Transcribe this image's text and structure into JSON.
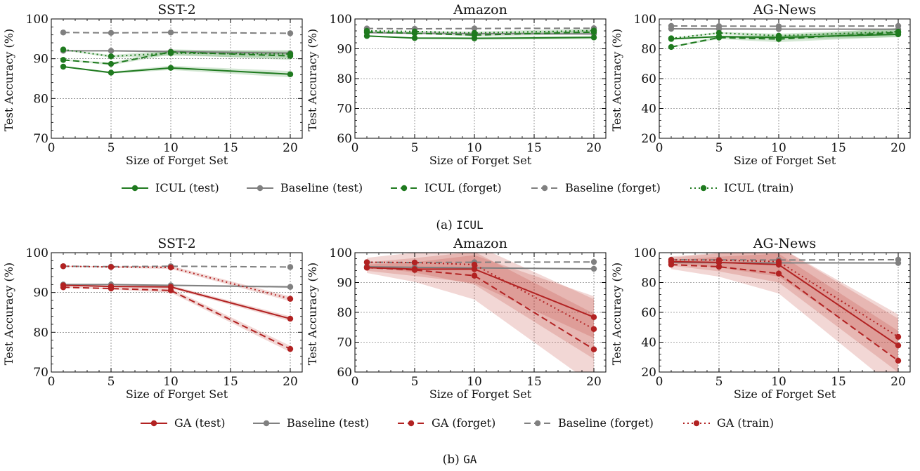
{
  "colors": {
    "icul": "#1f7a1f",
    "ga": "#b22222",
    "baseline": "#808080",
    "icul_band": "#2e8b2e",
    "ga_band": "#c0392b"
  },
  "captions": [
    {
      "label": "(a)",
      "method": "ICUL"
    },
    {
      "label": "(b)",
      "method": "GA"
    }
  ],
  "legends": [
    [
      {
        "label": "ICUL (test)",
        "color_key": "icul",
        "dash": "solid"
      },
      {
        "label": "Baseline (test)",
        "color_key": "baseline",
        "dash": "solid"
      },
      {
        "label": "ICUL (forget)",
        "color_key": "icul",
        "dash": "dashed"
      },
      {
        "label": "Baseline (forget)",
        "color_key": "baseline",
        "dash": "dashed"
      },
      {
        "label": "ICUL (train)",
        "color_key": "icul",
        "dash": "dotted"
      }
    ],
    [
      {
        "label": "GA (test)",
        "color_key": "ga",
        "dash": "solid"
      },
      {
        "label": "Baseline (test)",
        "color_key": "baseline",
        "dash": "solid"
      },
      {
        "label": "GA (forget)",
        "color_key": "ga",
        "dash": "dashed"
      },
      {
        "label": "Baseline (forget)",
        "color_key": "baseline",
        "dash": "dashed"
      },
      {
        "label": "GA (train)",
        "color_key": "ga",
        "dash": "dotted"
      }
    ]
  ],
  "chart_data": [
    {
      "type": "line",
      "title": "SST-2",
      "xlabel": "Size of Forget Set",
      "ylabel": "Test Accuracy (%)",
      "xlim": [
        0,
        21
      ],
      "ylim": [
        70,
        100
      ],
      "xticks": [
        0,
        5,
        10,
        15,
        20
      ],
      "yticks": [
        70,
        80,
        90,
        100
      ],
      "grid": true,
      "x": [
        1,
        5,
        10,
        20
      ],
      "series": [
        {
          "name": "Baseline (forget)",
          "color_key": "baseline",
          "dash": "dashed",
          "values": [
            96.6,
            96.5,
            96.6,
            96.4
          ],
          "band": 0
        },
        {
          "name": "Baseline (test)",
          "color_key": "baseline",
          "dash": "solid",
          "values": [
            92.0,
            92.0,
            91.8,
            91.4
          ],
          "band": 0.5
        },
        {
          "name": "ICUL (train)",
          "color_key": "icul",
          "dash": "dotted",
          "values": [
            92.3,
            90.6,
            91.4,
            91.2
          ],
          "band": 1.0
        },
        {
          "name": "ICUL (forget)",
          "color_key": "icul",
          "dash": "dashed",
          "values": [
            89.7,
            88.7,
            91.7,
            90.7
          ],
          "band": 1.0
        },
        {
          "name": "ICUL (test)",
          "color_key": "icul",
          "dash": "solid",
          "values": [
            88.0,
            86.5,
            87.7,
            86.1
          ],
          "band": 0.8
        }
      ]
    },
    {
      "type": "line",
      "title": "Amazon",
      "xlabel": "Size of Forget Set",
      "ylabel": "Test Accuracy (%)",
      "xlim": [
        0,
        21
      ],
      "ylim": [
        60,
        100
      ],
      "xticks": [
        0,
        5,
        10,
        15,
        20
      ],
      "yticks": [
        60,
        70,
        80,
        90,
        100
      ],
      "grid": true,
      "x": [
        1,
        5,
        10,
        20
      ],
      "series": [
        {
          "name": "Baseline (forget)",
          "color_key": "baseline",
          "dash": "dashed",
          "values": [
            96.8,
            96.7,
            96.8,
            96.9
          ],
          "band": 0
        },
        {
          "name": "Baseline (test)",
          "color_key": "baseline",
          "dash": "solid",
          "values": [
            95.4,
            95.2,
            95.1,
            95.0
          ],
          "band": 0.4
        },
        {
          "name": "ICUL (train)",
          "color_key": "icul",
          "dash": "dotted",
          "values": [
            96.0,
            95.8,
            95.3,
            96.1
          ],
          "band": 0.7
        },
        {
          "name": "ICUL (forget)",
          "color_key": "icul",
          "dash": "dashed",
          "values": [
            95.6,
            95.2,
            94.6,
            95.6
          ],
          "band": 0.7
        },
        {
          "name": "ICUL (test)",
          "color_key": "icul",
          "dash": "solid",
          "values": [
            94.3,
            93.6,
            93.5,
            93.8
          ],
          "band": 0.6
        }
      ]
    },
    {
      "type": "line",
      "title": "AG-News",
      "xlabel": "Size of Forget Set",
      "ylabel": "Test Accuracy (%)",
      "xlim": [
        0,
        21
      ],
      "ylim": [
        20,
        100
      ],
      "xticks": [
        0,
        5,
        10,
        15,
        20
      ],
      "yticks": [
        20,
        40,
        60,
        80,
        100
      ],
      "grid": true,
      "x": [
        1,
        5,
        10,
        20
      ],
      "series": [
        {
          "name": "Baseline (forget)",
          "color_key": "baseline",
          "dash": "dashed",
          "values": [
            95.3,
            95.2,
            95.1,
            95.3
          ],
          "band": 0
        },
        {
          "name": "Baseline (test)",
          "color_key": "baseline",
          "dash": "solid",
          "values": [
            93.4,
            93.3,
            93.2,
            93.1
          ],
          "band": 0.5
        },
        {
          "name": "ICUL (train)",
          "color_key": "icul",
          "dash": "dotted",
          "values": [
            87.0,
            90.6,
            88.8,
            91.5
          ],
          "band": 2.0
        },
        {
          "name": "ICUL (forget)",
          "color_key": "icul",
          "dash": "dashed",
          "values": [
            81.2,
            87.5,
            86.5,
            91.0
          ],
          "band": 3.0
        },
        {
          "name": "ICUL (test)",
          "color_key": "icul",
          "dash": "solid",
          "values": [
            86.6,
            88.2,
            87.6,
            89.7
          ],
          "band": 2.0
        }
      ]
    },
    {
      "type": "line",
      "title": "SST-2",
      "xlabel": "Size of Forget Set",
      "ylabel": "Test Accuracy (%)",
      "xlim": [
        0,
        21
      ],
      "ylim": [
        70,
        100
      ],
      "xticks": [
        0,
        5,
        10,
        15,
        20
      ],
      "yticks": [
        70,
        80,
        90,
        100
      ],
      "grid": true,
      "x": [
        1,
        5,
        10,
        20
      ],
      "series": [
        {
          "name": "Baseline (forget)",
          "color_key": "baseline",
          "dash": "dashed",
          "values": [
            96.6,
            96.5,
            96.6,
            96.4
          ],
          "band": 0
        },
        {
          "name": "Baseline (test)",
          "color_key": "baseline",
          "dash": "solid",
          "values": [
            92.0,
            92.0,
            91.8,
            91.4
          ],
          "band": 0.3
        },
        {
          "name": "GA (train)",
          "color_key": "ga",
          "dash": "dotted",
          "values": [
            96.6,
            96.4,
            96.3,
            88.4
          ],
          "band": 0.6
        },
        {
          "name": "GA (test)",
          "color_key": "ga",
          "dash": "solid",
          "values": [
            91.8,
            91.5,
            91.4,
            83.4
          ],
          "band": 0.6
        },
        {
          "name": "GA (forget)",
          "color_key": "ga",
          "dash": "dashed",
          "values": [
            91.3,
            91.0,
            90.5,
            75.8
          ],
          "band": 0.8
        }
      ]
    },
    {
      "type": "line",
      "title": "Amazon",
      "xlabel": "Size of Forget Set",
      "ylabel": "Test Accuracy (%)",
      "xlim": [
        0,
        21
      ],
      "ylim": [
        60,
        100
      ],
      "xticks": [
        0,
        5,
        10,
        15,
        20
      ],
      "yticks": [
        60,
        70,
        80,
        90,
        100
      ],
      "grid": true,
      "x": [
        1,
        5,
        10,
        20
      ],
      "series": [
        {
          "name": "Baseline (forget)",
          "color_key": "baseline",
          "dash": "dashed",
          "values": [
            96.8,
            96.7,
            96.8,
            96.9
          ],
          "band": 0
        },
        {
          "name": "Baseline (test)",
          "color_key": "baseline",
          "dash": "solid",
          "values": [
            95.3,
            95.1,
            94.9,
            94.6
          ],
          "band": 0.3
        },
        {
          "name": "GA (train)",
          "color_key": "ga",
          "dash": "dotted",
          "values": [
            96.8,
            96.7,
            96.0,
            74.4
          ],
          "band": 10
        },
        {
          "name": "GA (test)",
          "color_key": "ga",
          "dash": "solid",
          "values": [
            95.0,
            94.5,
            94.5,
            78.4
          ],
          "band": 7
        },
        {
          "name": "GA (forget)",
          "color_key": "ga",
          "dash": "dashed",
          "values": [
            95.0,
            94.2,
            92.3,
            67.6
          ],
          "band": 12
        }
      ]
    },
    {
      "type": "line",
      "title": "AG-News",
      "xlabel": "Size of Forget Set",
      "ylabel": "Test Accuracy (%)",
      "xlim": [
        0,
        21
      ],
      "ylim": [
        20,
        100
      ],
      "xticks": [
        0,
        5,
        10,
        15,
        20
      ],
      "yticks": [
        20,
        40,
        60,
        80,
        100
      ],
      "grid": true,
      "x": [
        1,
        5,
        10,
        20
      ],
      "series": [
        {
          "name": "Baseline (forget)",
          "color_key": "baseline",
          "dash": "dashed",
          "values": [
            95.3,
            95.2,
            95.1,
            95.3
          ],
          "band": 0
        },
        {
          "name": "Baseline (test)",
          "color_key": "baseline",
          "dash": "solid",
          "values": [
            93.4,
            93.3,
            93.2,
            93.1
          ],
          "band": 0.3
        },
        {
          "name": "GA (train)",
          "color_key": "ga",
          "dash": "dotted",
          "values": [
            95.2,
            95.0,
            94.0,
            43.6
          ],
          "band": 15
        },
        {
          "name": "GA (test)",
          "color_key": "ga",
          "dash": "solid",
          "values": [
            94.0,
            93.5,
            92.0,
            37.8
          ],
          "band": 18
        },
        {
          "name": "GA (forget)",
          "color_key": "ga",
          "dash": "dashed",
          "values": [
            92.0,
            90.6,
            86.0,
            27.6
          ],
          "band": 20
        }
      ]
    }
  ]
}
